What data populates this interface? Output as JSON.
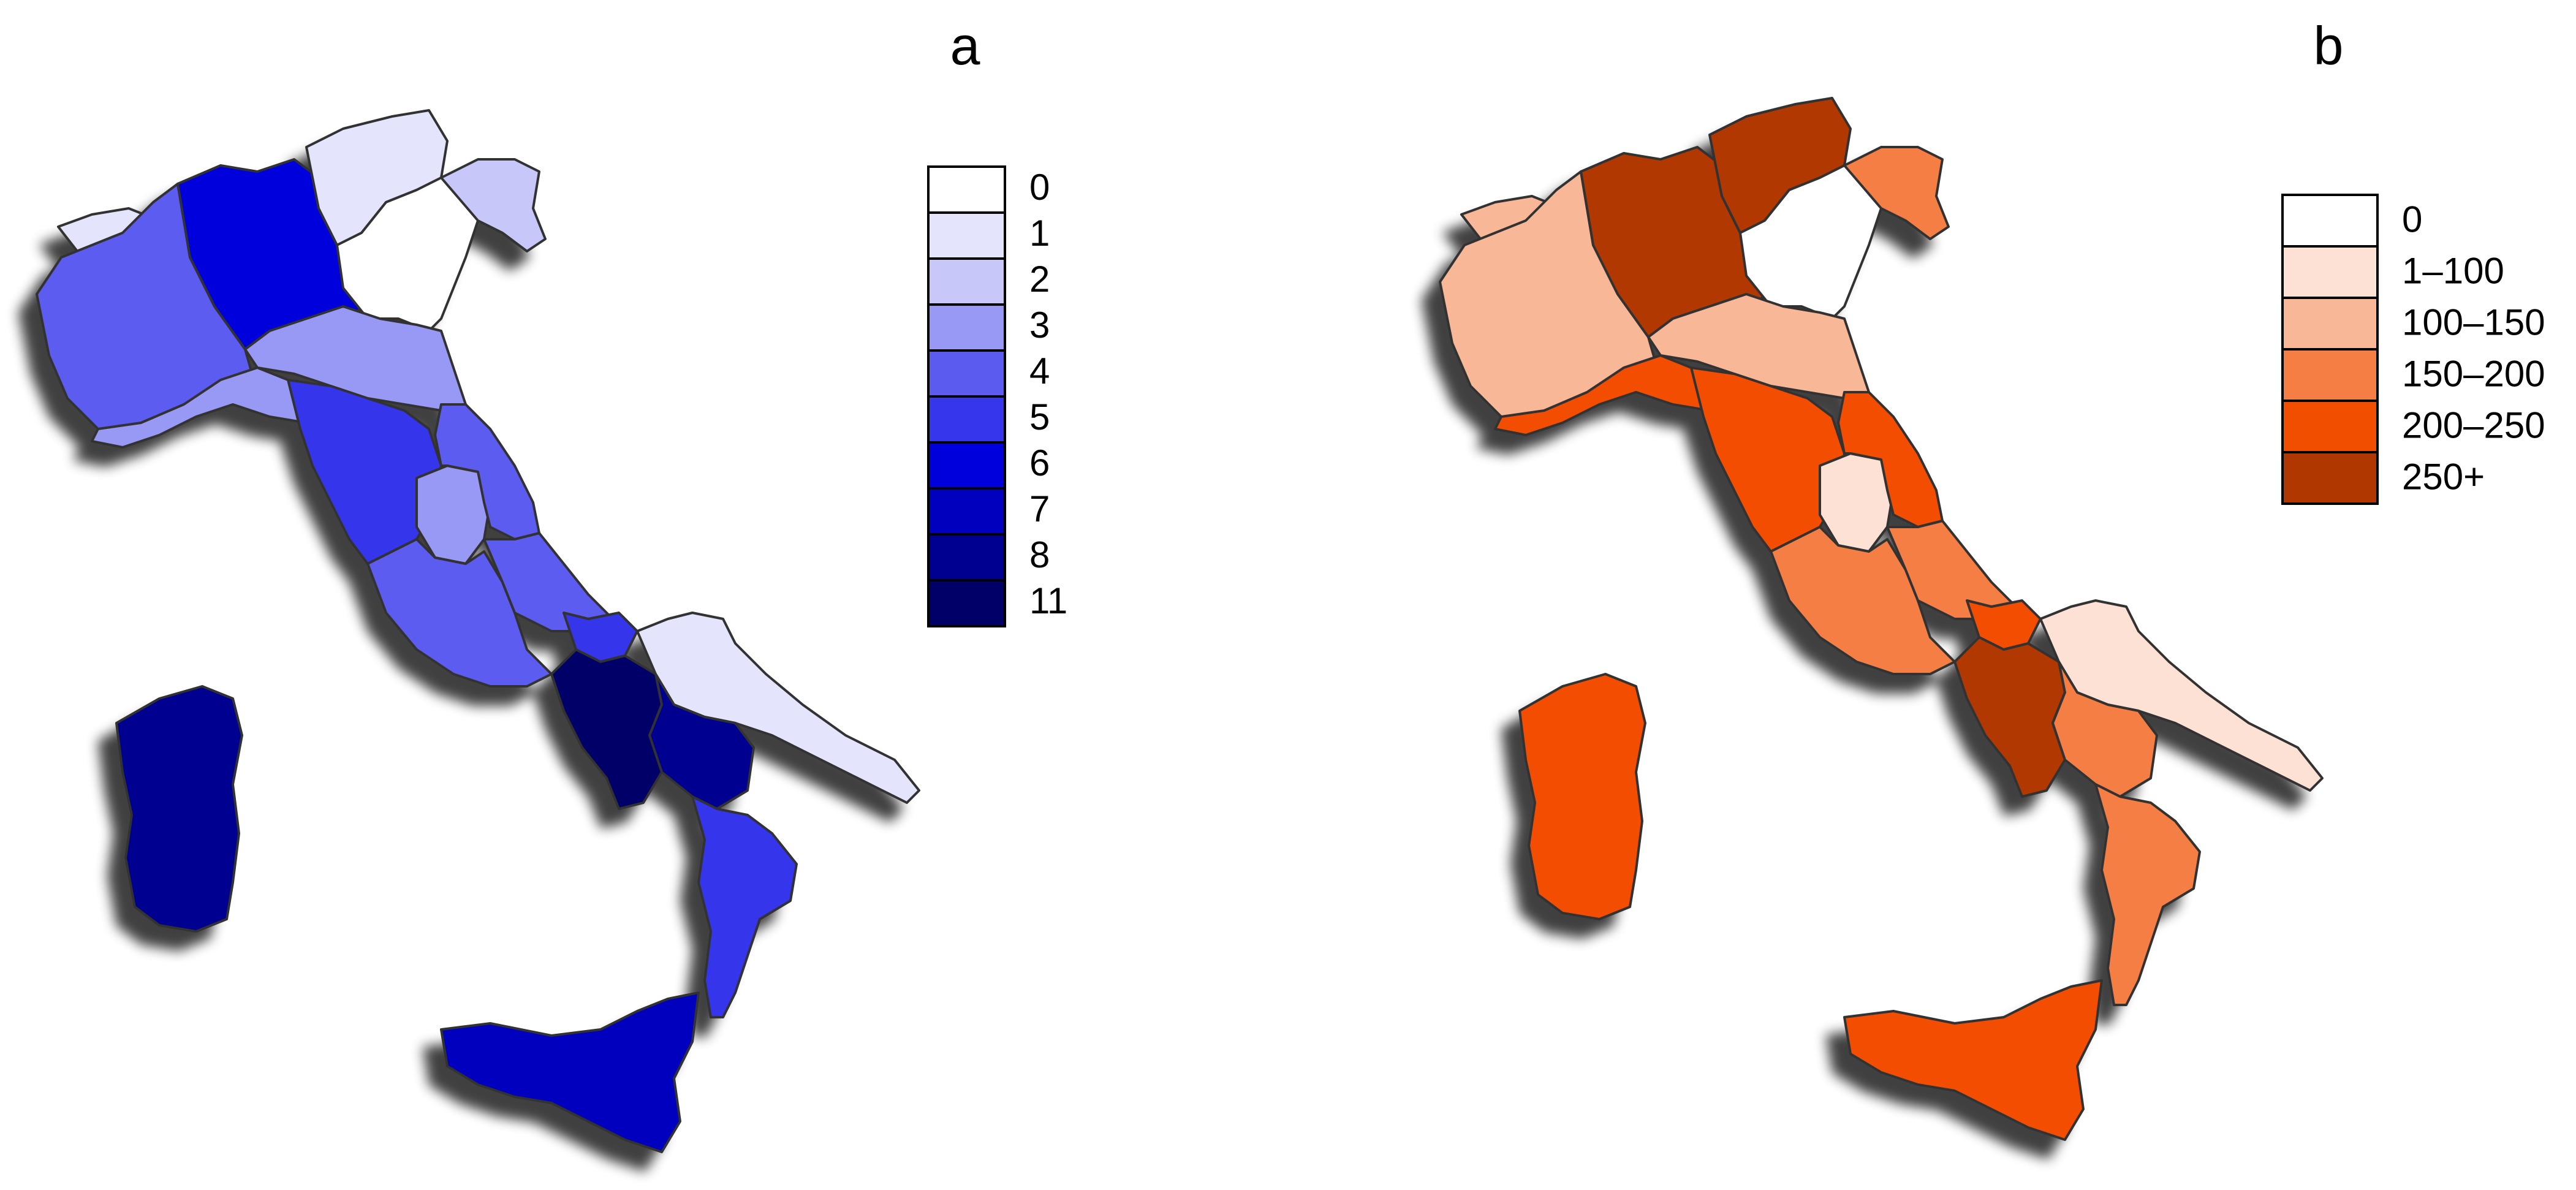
{
  "panels": [
    {
      "label": "a",
      "legend": [
        {
          "label": "0",
          "color": "#FFFFFF"
        },
        {
          "label": "1",
          "color": "#E4E4FC"
        },
        {
          "label": "2",
          "color": "#C7C7FA"
        },
        {
          "label": "3",
          "color": "#9898F5"
        },
        {
          "label": "4",
          "color": "#5B5BF0"
        },
        {
          "label": "5",
          "color": "#3636EC"
        },
        {
          "label": "6",
          "color": "#0000DD"
        },
        {
          "label": "7",
          "color": "#0000BE"
        },
        {
          "label": "8",
          "color": "#000090"
        },
        {
          "label": "11",
          "color": "#000068"
        }
      ],
      "regions": {
        "sardinia": "#000090",
        "sicily": "#0000BE",
        "valle_daosta": "#E4E4FC",
        "piedmont": "#5B5BF0",
        "liguria": "#9898F5",
        "lombardy": "#0000DD",
        "trentino": "#E4E4FC",
        "veneto": "#FFFFFF",
        "friuli": "#C7C7FA",
        "emilia_romagna": "#9898F5",
        "tuscany": "#3636EC",
        "umbria": "#9898F5",
        "marche": "#5B5BF0",
        "lazio": "#5B5BF0",
        "abruzzo": "#5B5BF0",
        "molise": "#3636EC",
        "campania": "#000068",
        "puglia": "#E4E4FC",
        "basilicata": "#000090",
        "calabria": "#3636EC"
      }
    },
    {
      "label": "b",
      "legend": [
        {
          "label": "0",
          "color": "#FFFFFF"
        },
        {
          "label": "1–100",
          "color": "#FCE1D4"
        },
        {
          "label": "100–150",
          "color": "#F8B898"
        },
        {
          "label": "150–200",
          "color": "#F57E45"
        },
        {
          "label": "200–250",
          "color": "#F24E00"
        },
        {
          "label": "250+",
          "color": "#B13700"
        }
      ],
      "regions": {
        "sardinia": "#F24E00",
        "sicily": "#F24E00",
        "valle_daosta": "#F8B898",
        "piedmont": "#F8B898",
        "liguria": "#F24E00",
        "lombardy": "#B13700",
        "trentino": "#B13700",
        "veneto": "#FFFFFF",
        "friuli": "#F57E45",
        "emilia_romagna": "#F8B898",
        "tuscany": "#F24E00",
        "umbria": "#FCE1D4",
        "marche": "#F24E00",
        "lazio": "#F57E45",
        "abruzzo": "#F57E45",
        "molise": "#F24E00",
        "campania": "#B13700",
        "puglia": "#FCE1D4",
        "basilicata": "#F57E45",
        "calabria": "#F57E45"
      }
    }
  ]
}
